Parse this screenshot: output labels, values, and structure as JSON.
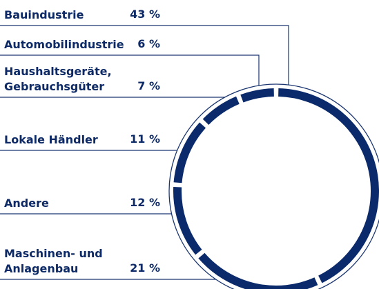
{
  "chart_data": {
    "type": "donut",
    "categories": [
      "Bauindustrie",
      "Automobilindustrie",
      "Haushaltsgeräte,\nGebrauchsgüter",
      "Lokale Händler",
      "Andere",
      "Maschinen- und\nAnlagenbau"
    ],
    "values": [
      43,
      6,
      7,
      11,
      12,
      21
    ],
    "value_labels": [
      "43 %",
      "6 %",
      "7 %",
      "11 %",
      "12 %",
      "21 %"
    ],
    "color": "#0b2a6b"
  }
}
